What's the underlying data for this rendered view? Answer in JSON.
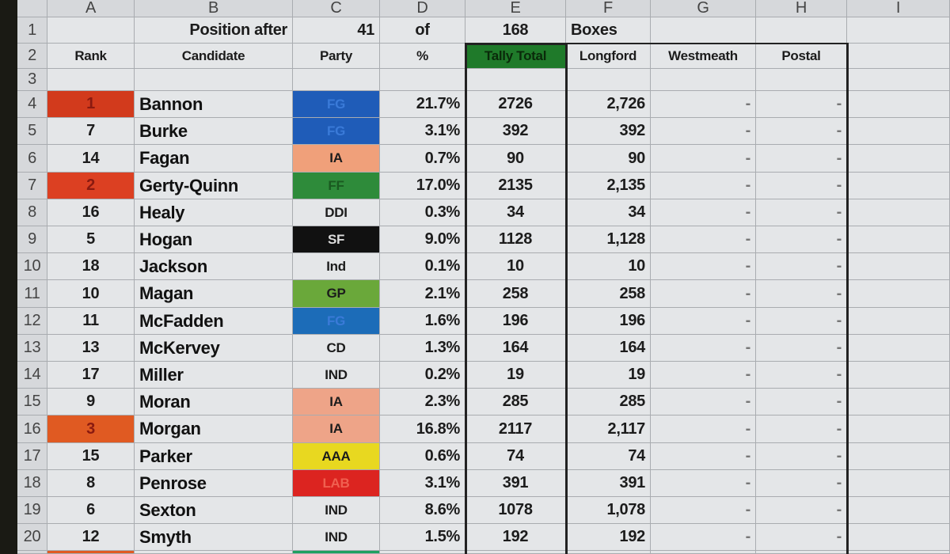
{
  "column_headers": [
    "A",
    "B",
    "C",
    "D",
    "E",
    "F",
    "G",
    "H",
    "I"
  ],
  "row1": {
    "label": "Position after",
    "count": "41",
    "of": "of",
    "total": "168",
    "unit": "Boxes"
  },
  "headers": {
    "rank": "Rank",
    "candidate": "Candidate",
    "party": "Party",
    "percent": "%",
    "tally_total": "Tally Total",
    "longford": "Longford",
    "westmeath": "Westmeath",
    "postal": "Postal"
  },
  "colors": {
    "tally_header_bg": "#1f7a2a",
    "rank_highlight": "#d8401e"
  },
  "rows": [
    {
      "row": "4",
      "rank": "1",
      "candidate": "Bannon",
      "party": "FG",
      "party_color": "#1f5cb8",
      "pct": "21.7%",
      "tally": "2726",
      "longford": "2,726",
      "westmeath": "-",
      "postal": "-",
      "highlight": "#d23a1c"
    },
    {
      "row": "5",
      "rank": "7",
      "candidate": "Burke",
      "party": "FG",
      "party_color": "#1f5cb8",
      "pct": "3.1%",
      "tally": "392",
      "longford": "392",
      "westmeath": "-",
      "postal": "-"
    },
    {
      "row": "6",
      "rank": "14",
      "candidate": "Fagan",
      "party": "IA",
      "party_color": "#f0a07a",
      "pct": "0.7%",
      "tally": "90",
      "longford": "90",
      "westmeath": "-",
      "postal": "-"
    },
    {
      "row": "7",
      "rank": "2",
      "candidate": "Gerty-Quinn",
      "party": "FF",
      "party_color": "#2e8b3a",
      "pct": "17.0%",
      "tally": "2135",
      "longford": "2,135",
      "westmeath": "-",
      "postal": "-",
      "highlight": "#dc4022"
    },
    {
      "row": "8",
      "rank": "16",
      "candidate": "Healy",
      "party": "DDI",
      "party_color": "",
      "pct": "0.3%",
      "tally": "34",
      "longford": "34",
      "westmeath": "-",
      "postal": "-"
    },
    {
      "row": "9",
      "rank": "5",
      "candidate": "Hogan",
      "party": "SF",
      "party_color": "#111111",
      "pct": "9.0%",
      "tally": "1128",
      "longford": "1,128",
      "westmeath": "-",
      "postal": "-"
    },
    {
      "row": "10",
      "rank": "18",
      "candidate": "Jackson",
      "party": "Ind",
      "party_color": "",
      "pct": "0.1%",
      "tally": "10",
      "longford": "10",
      "westmeath": "-",
      "postal": "-"
    },
    {
      "row": "11",
      "rank": "10",
      "candidate": "Magan",
      "party": "GP",
      "party_color": "#6aa83a",
      "pct": "2.1%",
      "tally": "258",
      "longford": "258",
      "westmeath": "-",
      "postal": "-"
    },
    {
      "row": "12",
      "rank": "11",
      "candidate": "McFadden",
      "party": "FG",
      "party_color": "#1c6cb8",
      "pct": "1.6%",
      "tally": "196",
      "longford": "196",
      "westmeath": "-",
      "postal": "-"
    },
    {
      "row": "13",
      "rank": "13",
      "candidate": "McKervey",
      "party": "CD",
      "party_color": "",
      "pct": "1.3%",
      "tally": "164",
      "longford": "164",
      "westmeath": "-",
      "postal": "-"
    },
    {
      "row": "14",
      "rank": "17",
      "candidate": "Miller",
      "party": "IND",
      "party_color": "",
      "pct": "0.2%",
      "tally": "19",
      "longford": "19",
      "westmeath": "-",
      "postal": "-"
    },
    {
      "row": "15",
      "rank": "9",
      "candidate": "Moran",
      "party": "IA",
      "party_color": "#eea488",
      "pct": "2.3%",
      "tally": "285",
      "longford": "285",
      "westmeath": "-",
      "postal": "-"
    },
    {
      "row": "16",
      "rank": "3",
      "candidate": "Morgan",
      "party": "IA",
      "party_color": "#eea488",
      "pct": "16.8%",
      "tally": "2117",
      "longford": "2,117",
      "westmeath": "-",
      "postal": "-",
      "highlight": "#e05a22"
    },
    {
      "row": "17",
      "rank": "15",
      "candidate": "Parker",
      "party": "AAA",
      "party_color": "#e8d820",
      "pct": "0.6%",
      "tally": "74",
      "longford": "74",
      "westmeath": "-",
      "postal": "-"
    },
    {
      "row": "18",
      "rank": "8",
      "candidate": "Penrose",
      "party": "LAB",
      "party_color": "#dc2420",
      "pct": "3.1%",
      "tally": "391",
      "longford": "391",
      "westmeath": "-",
      "postal": "-"
    },
    {
      "row": "19",
      "rank": "6",
      "candidate": "Sexton",
      "party": "IND",
      "party_color": "",
      "pct": "8.6%",
      "tally": "1078",
      "longford": "1,078",
      "westmeath": "-",
      "postal": "-"
    },
    {
      "row": "20",
      "rank": "12",
      "candidate": "Smyth",
      "party": "IND",
      "party_color": "",
      "pct": "1.5%",
      "tally": "192",
      "longford": "192",
      "westmeath": "-",
      "postal": "-"
    }
  ]
}
